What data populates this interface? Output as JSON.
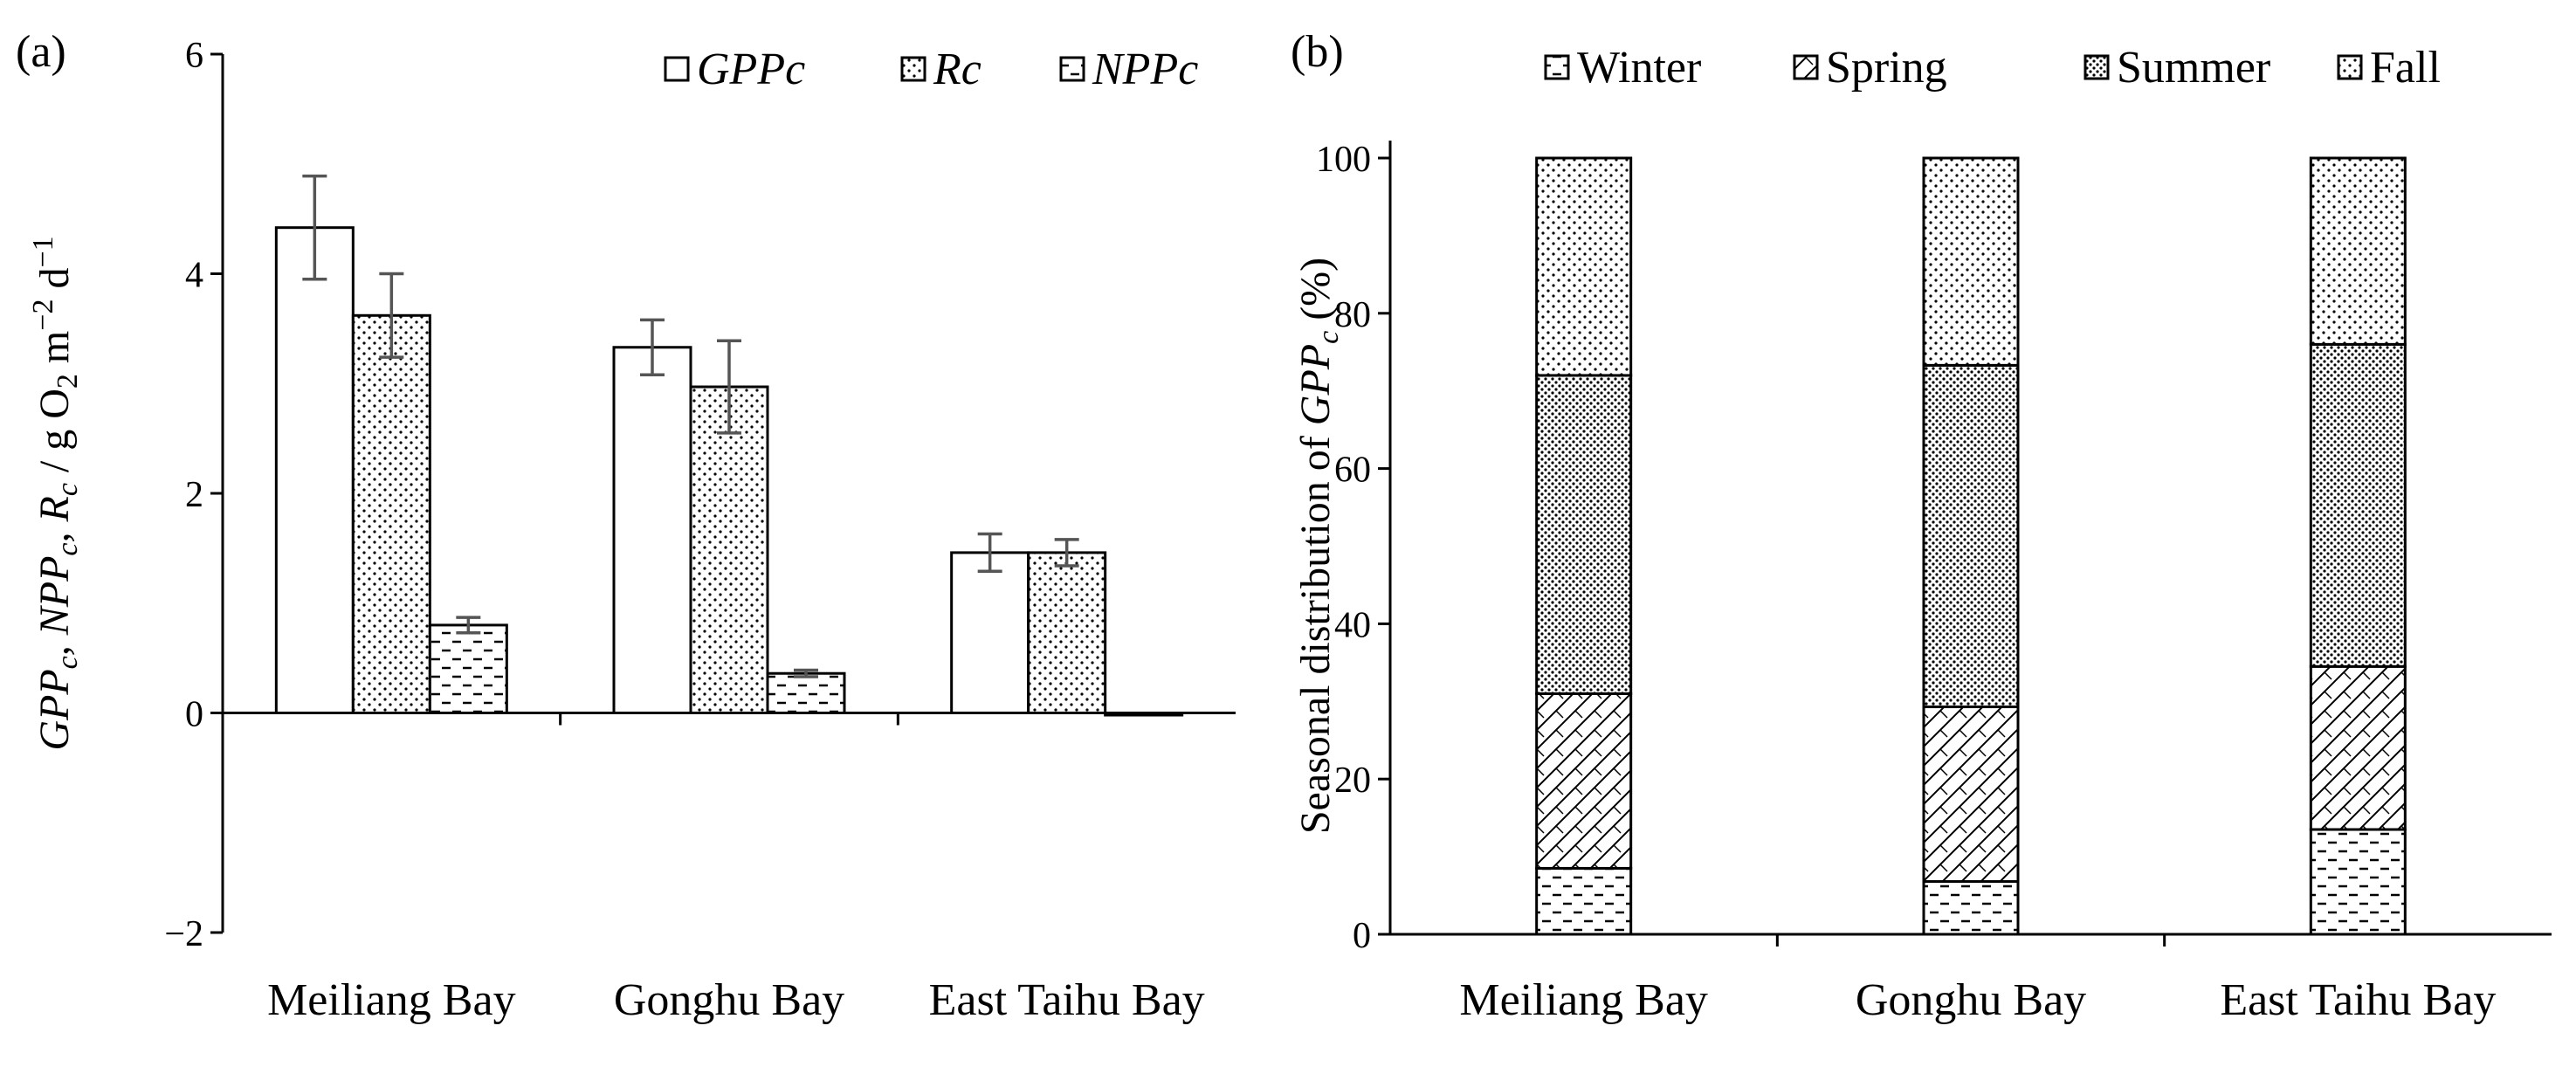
{
  "chart_data": [
    {
      "panel": "(a)",
      "type": "bar",
      "categories": [
        "Meiliang Bay",
        "Gonghu Bay",
        "East Taihu Bay"
      ],
      "series": [
        {
          "name": "GPPc",
          "values": [
            4.42,
            3.33,
            1.46
          ],
          "errors": [
            0.47,
            0.25,
            0.17
          ],
          "pattern": "none"
        },
        {
          "name": "Rc",
          "values": [
            3.62,
            2.97,
            1.46
          ],
          "errors": [
            0.38,
            0.42,
            0.12
          ],
          "pattern": "dots"
        },
        {
          "name": "NPPc",
          "values": [
            0.8,
            0.36,
            -0.02
          ],
          "errors": [
            0.07,
            0.03,
            0.0
          ],
          "pattern": "dashes"
        }
      ],
      "ylim": [
        -2,
        6
      ],
      "yticks": [
        -2,
        0,
        2,
        4,
        6
      ],
      "ytick_labels": [
        "−2",
        "0",
        "2",
        "4",
        "6"
      ],
      "ylabel": {
        "part1": "GPP",
        "sub1": "c",
        "part2": ", NPP",
        "sub2": "c",
        "part3": ", R",
        "sub3": "c",
        "part4": " / g O",
        "sub4": "2",
        "part5": " m",
        "sup5": "−2",
        "part6": " d",
        "sup6": "−1"
      },
      "legend_position": "top-right"
    },
    {
      "panel": "(b)",
      "type": "bar",
      "stacked": true,
      "categories": [
        "Meiliang Bay",
        "Gonghu Bay",
        "East Taihu Bay"
      ],
      "series": [
        {
          "name": "Winter",
          "values": [
            8.5,
            6.8,
            13.5
          ],
          "pattern": "dashes"
        },
        {
          "name": "Spring",
          "values": [
            22.5,
            22.5,
            21.0
          ],
          "pattern": "diag"
        },
        {
          "name": "Summer",
          "values": [
            41.0,
            44.0,
            41.5
          ],
          "pattern": "dense-dots"
        },
        {
          "name": "Fall",
          "values": [
            28.0,
            26.7,
            24.0
          ],
          "pattern": "dots"
        }
      ],
      "ylim": [
        0,
        100
      ],
      "yticks": [
        0,
        20,
        40,
        60,
        80,
        100
      ],
      "ytick_labels": [
        "0",
        "20",
        "40",
        "60",
        "80",
        "100"
      ],
      "ylabel": {
        "part1": "Seasonal distribution of ",
        "part2": "GPP",
        "sub2": "c",
        "part3": " (%)"
      },
      "legend_position": "top"
    }
  ]
}
